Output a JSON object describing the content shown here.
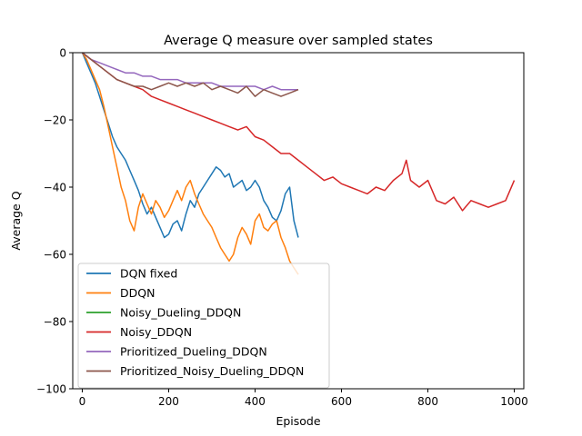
{
  "chart_data": {
    "type": "line",
    "title": "Average Q measure over sampled states",
    "xlabel": "Episode",
    "ylabel": "Average Q",
    "xlim": [
      -22,
      1022
    ],
    "ylim": [
      -100,
      0
    ],
    "xticks": [
      0,
      200,
      400,
      600,
      800,
      1000
    ],
    "yticks": [
      0,
      -20,
      -40,
      -60,
      -80,
      -100
    ],
    "grid": false,
    "legend_position": "lower-left",
    "series": [
      {
        "name": "DQN fixed",
        "color": "#1f77b4",
        "x": [
          0,
          10,
          20,
          30,
          40,
          50,
          60,
          70,
          80,
          90,
          100,
          110,
          120,
          130,
          140,
          150,
          160,
          170,
          180,
          190,
          200,
          210,
          220,
          230,
          240,
          250,
          260,
          270,
          280,
          290,
          300,
          310,
          320,
          330,
          340,
          350,
          360,
          370,
          380,
          390,
          400,
          410,
          420,
          430,
          440,
          450,
          460,
          470,
          480,
          490,
          500
        ],
        "y": [
          0,
          -3,
          -6,
          -9,
          -13,
          -17,
          -21,
          -25,
          -28,
          -30,
          -32,
          -35,
          -38,
          -41,
          -45,
          -48,
          -46,
          -49,
          -52,
          -55,
          -54,
          -51,
          -50,
          -53,
          -48,
          -44,
          -46,
          -42,
          -40,
          -38,
          -36,
          -34,
          -35,
          -37,
          -36,
          -40,
          -39,
          -38,
          -41,
          -40,
          -38,
          -40,
          -44,
          -46,
          -49,
          -50,
          -47,
          -42,
          -40,
          -50,
          -55
        ]
      },
      {
        "name": "DDQN",
        "color": "#ff7f0e",
        "x": [
          0,
          10,
          20,
          30,
          40,
          50,
          60,
          70,
          80,
          90,
          100,
          110,
          120,
          130,
          140,
          150,
          160,
          170,
          180,
          190,
          200,
          210,
          220,
          230,
          240,
          250,
          260,
          270,
          280,
          290,
          300,
          310,
          320,
          330,
          340,
          350,
          360,
          370,
          380,
          390,
          400,
          410,
          420,
          430,
          440,
          450,
          460,
          470,
          480,
          490,
          500
        ],
        "y": [
          0,
          -2,
          -5,
          -8,
          -11,
          -16,
          -22,
          -28,
          -34,
          -40,
          -44,
          -50,
          -53,
          -46,
          -42,
          -45,
          -48,
          -44,
          -46,
          -49,
          -47,
          -44,
          -41,
          -44,
          -40,
          -38,
          -42,
          -45,
          -48,
          -50,
          -52,
          -55,
          -58,
          -60,
          -62,
          -60,
          -55,
          -52,
          -54,
          -57,
          -50,
          -48,
          -52,
          -53,
          -51,
          -50,
          -55,
          -58,
          -62,
          -64,
          -66
        ]
      },
      {
        "name": "Noisy_Dueling_DDQN",
        "color": "#2ca02c",
        "x": [],
        "y": []
      },
      {
        "name": "Noisy_DDQN",
        "color": "#d62728",
        "x": [
          0,
          20,
          40,
          60,
          80,
          100,
          120,
          140,
          160,
          180,
          200,
          220,
          240,
          260,
          280,
          300,
          320,
          340,
          360,
          380,
          400,
          420,
          440,
          460,
          480,
          500,
          520,
          540,
          560,
          580,
          600,
          620,
          640,
          660,
          680,
          700,
          720,
          740,
          750,
          760,
          780,
          800,
          820,
          840,
          860,
          880,
          900,
          920,
          940,
          960,
          980,
          1000
        ],
        "y": [
          0,
          -2,
          -4,
          -6,
          -8,
          -9,
          -10,
          -11,
          -13,
          -14,
          -15,
          -16,
          -17,
          -18,
          -19,
          -20,
          -21,
          -22,
          -23,
          -22,
          -25,
          -26,
          -28,
          -30,
          -30,
          -32,
          -34,
          -36,
          -38,
          -37,
          -39,
          -40,
          -41,
          -42,
          -40,
          -41,
          -38,
          -36,
          -32,
          -38,
          -40,
          -38,
          -44,
          -45,
          -43,
          -47,
          -44,
          -45,
          -46,
          -45,
          -44,
          -38
        ]
      },
      {
        "name": "Prioritized_Dueling_DDQN",
        "color": "#9467bd",
        "x": [
          0,
          20,
          40,
          60,
          80,
          100,
          120,
          140,
          160,
          180,
          200,
          220,
          240,
          260,
          280,
          300,
          320,
          340,
          360,
          380,
          400,
          420,
          440,
          460,
          480,
          500
        ],
        "y": [
          0,
          -2,
          -3,
          -4,
          -5,
          -6,
          -6,
          -7,
          -7,
          -8,
          -8,
          -8,
          -9,
          -9,
          -9,
          -9,
          -10,
          -10,
          -10,
          -10,
          -10,
          -11,
          -10,
          -11,
          -11,
          -11
        ]
      },
      {
        "name": "Prioritized_Noisy_Dueling_DDQN",
        "color": "#8c564b",
        "x": [
          0,
          20,
          40,
          60,
          80,
          100,
          120,
          140,
          160,
          180,
          200,
          220,
          240,
          260,
          280,
          300,
          320,
          340,
          360,
          380,
          400,
          420,
          440,
          460,
          480,
          500
        ],
        "y": [
          0,
          -2,
          -4,
          -6,
          -8,
          -9,
          -10,
          -10,
          -11,
          -10,
          -9,
          -10,
          -9,
          -10,
          -9,
          -11,
          -10,
          -11,
          -12,
          -10,
          -13,
          -11,
          -12,
          -13,
          -12,
          -11
        ]
      }
    ]
  }
}
